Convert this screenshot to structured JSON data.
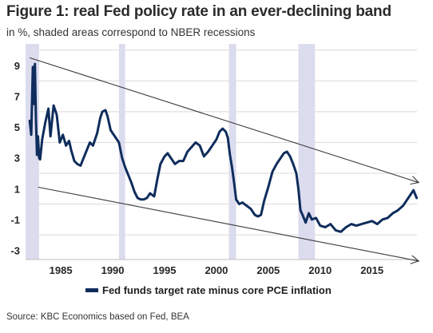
{
  "header": {
    "title": "Figure 1: real Fed policy rate in an ever-declining band",
    "subtitle": "in %, shaded areas correspond to NBER recessions"
  },
  "footer": {
    "source": "Source: KBC Economics based on Fed, BEA"
  },
  "colors": {
    "series": "#0f2d5c",
    "recession": "#dcdcef",
    "band_lines": "#3a3a3a",
    "grid": "#d9d9d9"
  },
  "chart_data": {
    "type": "line",
    "title": "Figure 1: real Fed policy rate in an ever-declining band",
    "subtitle": "in %, shaded areas correspond to NBER recessions",
    "xlabel": "",
    "ylabel": "",
    "xlim": [
      1981.6,
      2019.8
    ],
    "ylim": [
      -3.6,
      10.4
    ],
    "x_ticks": [
      "1985",
      "1990",
      "1995",
      "2000",
      "2005",
      "2010",
      "2015"
    ],
    "y_ticks": [
      "9",
      "7",
      "5",
      "3",
      "1",
      "-1",
      "-3"
    ],
    "grid": "horizontal",
    "legend": {
      "position": "bottom-center",
      "entries": [
        "Fed funds target rate minus core PCE inflation"
      ]
    },
    "recessions": [
      {
        "start": 1981.6,
        "end": 1982.9
      },
      {
        "start": 1990.6,
        "end": 1991.2
      },
      {
        "start": 2001.2,
        "end": 2001.9
      },
      {
        "start": 2007.9,
        "end": 2009.5
      }
    ],
    "band_lines": [
      {
        "from": [
          1982.0,
          9.5
        ],
        "to": [
          2019.5,
          1.4
        ],
        "arrow": true
      },
      {
        "from": [
          1982.8,
          1.1
        ],
        "to": [
          2019.5,
          -3.7
        ],
        "arrow": true
      }
    ],
    "series": [
      {
        "name": "Fed funds target rate minus core PCE inflation",
        "x": [
          1982.0,
          1982.15,
          1982.3,
          1982.4,
          1982.5,
          1982.6,
          1982.7,
          1982.8,
          1982.9,
          1983.0,
          1983.2,
          1983.5,
          1983.8,
          1984.0,
          1984.3,
          1984.6,
          1984.9,
          1985.2,
          1985.5,
          1985.8,
          1986.0,
          1986.3,
          1986.6,
          1986.9,
          1987.2,
          1987.5,
          1987.8,
          1988.1,
          1988.5,
          1988.8,
          1989.0,
          1989.3,
          1989.5,
          1989.8,
          1990.0,
          1990.3,
          1990.6,
          1990.9,
          1991.2,
          1991.5,
          1991.8,
          1992.1,
          1992.4,
          1992.7,
          1993.0,
          1993.3,
          1993.6,
          1994.0,
          1994.3,
          1994.6,
          1995.0,
          1995.3,
          1995.6,
          1996.0,
          1996.4,
          1996.8,
          1997.2,
          1997.6,
          1998.0,
          1998.4,
          1998.8,
          1999.2,
          1999.6,
          2000.0,
          2000.3,
          2000.6,
          2000.9,
          2001.1,
          2001.3,
          2001.5,
          2001.7,
          2001.9,
          2002.2,
          2002.5,
          2002.9,
          2003.3,
          2003.7,
          2004.0,
          2004.3,
          2004.6,
          2005.0,
          2005.4,
          2005.8,
          2006.2,
          2006.5,
          2006.8,
          2007.1,
          2007.4,
          2007.7,
          2007.9,
          2008.1,
          2008.3,
          2008.6,
          2008.9,
          2009.2,
          2009.6,
          2010.0,
          2010.5,
          2011.0,
          2011.5,
          2012.0,
          2012.5,
          2013.0,
          2013.5,
          2014.0,
          2014.5,
          2015.0,
          2015.5,
          2016.0,
          2016.5,
          2017.0,
          2017.5,
          2018.0,
          2018.4,
          2018.7,
          2019.0,
          2019.3
        ],
        "values": [
          5.4,
          4.5,
          8.9,
          6.5,
          9.1,
          5.5,
          3.2,
          4.4,
          3.0,
          2.9,
          4.2,
          5.3,
          6.2,
          4.4,
          6.4,
          5.8,
          4.0,
          4.5,
          3.8,
          4.1,
          3.5,
          2.8,
          2.6,
          2.5,
          3.0,
          3.5,
          4.0,
          3.8,
          4.6,
          5.6,
          6.0,
          6.1,
          5.7,
          4.8,
          4.6,
          4.3,
          4.0,
          3.0,
          2.4,
          1.9,
          1.4,
          0.8,
          0.4,
          0.3,
          0.3,
          0.4,
          0.7,
          0.5,
          1.6,
          2.6,
          3.1,
          3.3,
          3.0,
          2.6,
          2.8,
          2.8,
          3.4,
          3.7,
          4.0,
          3.8,
          3.1,
          3.4,
          3.8,
          4.2,
          4.7,
          4.9,
          4.7,
          4.3,
          3.2,
          2.4,
          1.4,
          0.3,
          0.0,
          0.1,
          -0.1,
          -0.3,
          -0.7,
          -0.8,
          -0.7,
          0.2,
          1.1,
          2.1,
          2.6,
          3.0,
          3.3,
          3.4,
          3.1,
          2.6,
          2.0,
          1.0,
          -0.4,
          -0.7,
          -1.2,
          -0.6,
          -1.0,
          -0.9,
          -1.4,
          -1.5,
          -1.3,
          -1.7,
          -1.8,
          -1.5,
          -1.3,
          -1.4,
          -1.3,
          -1.2,
          -1.1,
          -1.3,
          -1.0,
          -0.9,
          -0.6,
          -0.4,
          -0.1,
          0.3,
          0.6,
          0.9,
          0.4
        ]
      }
    ]
  }
}
